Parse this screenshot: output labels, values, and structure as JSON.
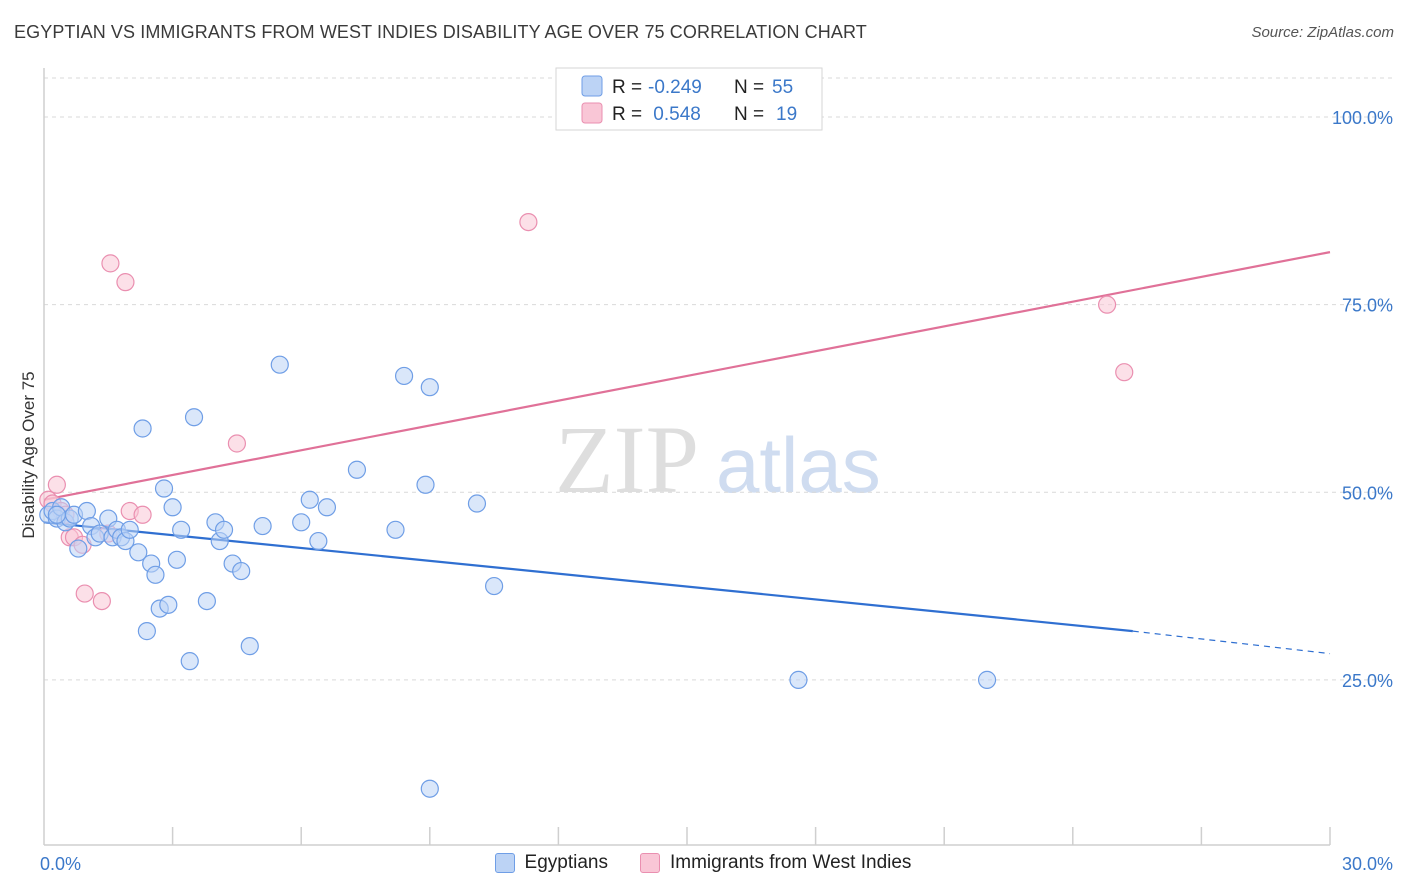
{
  "header": {
    "title": "EGYPTIAN VS IMMIGRANTS FROM WEST INDIES DISABILITY AGE OVER 75 CORRELATION CHART",
    "source": "Source: ZipAtlas.com"
  },
  "watermark": {
    "zip": "ZIP",
    "atlas": "atlas"
  },
  "colors": {
    "blue": "#3b78c9",
    "blue_fill": "#bcd3f5",
    "blue_line": "#2f6fd1",
    "pink_fill": "#f9c6d6",
    "pink_line": "#e07198",
    "grid": "#d9d9d9"
  },
  "legend": {
    "rows": [
      {
        "r_label": "R =",
        "r_value": "-0.249",
        "n_label": "N =",
        "n_value": "55"
      },
      {
        "r_label": "R =",
        "r_value": " 0.548",
        "n_label": "N =",
        "n_value": "19"
      }
    ]
  },
  "chart_data": {
    "type": "scatter",
    "title": "EGYPTIAN VS IMMIGRANTS FROM WEST INDIES DISABILITY AGE OVER 75 CORRELATION CHART",
    "xlabel": "",
    "ylabel": "Disability Age Over 75",
    "xlim": [
      0,
      30
    ],
    "ylim": [
      3,
      106
    ],
    "x_tick_labels": [
      "0.0%",
      "30.0%"
    ],
    "y_ticks": [
      25,
      50,
      75,
      100
    ],
    "y_tick_labels": [
      "25.0%",
      "50.0%",
      "75.0%",
      "100.0%"
    ],
    "series": [
      {
        "name": "Egyptians",
        "r": -0.249,
        "n": 55,
        "points": [
          [
            0.1,
            47.0
          ],
          [
            0.2,
            47.5
          ],
          [
            0.3,
            46.5
          ],
          [
            0.4,
            48.0
          ],
          [
            0.5,
            46.0
          ],
          [
            0.6,
            46.5
          ],
          [
            0.7,
            47.0
          ],
          [
            0.8,
            42.5
          ],
          [
            1.0,
            47.5
          ],
          [
            1.1,
            45.5
          ],
          [
            1.2,
            44.0
          ],
          [
            1.3,
            44.5
          ],
          [
            1.5,
            46.5
          ],
          [
            1.6,
            44.0
          ],
          [
            1.7,
            45.0
          ],
          [
            1.8,
            44.0
          ],
          [
            1.9,
            43.5
          ],
          [
            2.0,
            45.0
          ],
          [
            2.2,
            42.0
          ],
          [
            2.3,
            58.5
          ],
          [
            2.4,
            31.5
          ],
          [
            2.5,
            40.5
          ],
          [
            2.6,
            39.0
          ],
          [
            2.7,
            34.5
          ],
          [
            2.8,
            50.5
          ],
          [
            2.9,
            35.0
          ],
          [
            3.0,
            48.0
          ],
          [
            3.1,
            41.0
          ],
          [
            3.2,
            45.0
          ],
          [
            3.4,
            27.5
          ],
          [
            3.5,
            60.0
          ],
          [
            3.8,
            35.5
          ],
          [
            4.0,
            46.0
          ],
          [
            4.1,
            43.5
          ],
          [
            4.2,
            45.0
          ],
          [
            4.4,
            40.5
          ],
          [
            4.6,
            39.5
          ],
          [
            4.8,
            29.5
          ],
          [
            5.1,
            45.5
          ],
          [
            5.5,
            67.0
          ],
          [
            6.0,
            46.0
          ],
          [
            6.2,
            49.0
          ],
          [
            6.4,
            43.5
          ],
          [
            6.6,
            48.0
          ],
          [
            7.3,
            53.0
          ],
          [
            8.2,
            45.0
          ],
          [
            8.4,
            65.5
          ],
          [
            8.9,
            51.0
          ],
          [
            9.0,
            64.0
          ],
          [
            9.0,
            10.5
          ],
          [
            10.1,
            48.5
          ],
          [
            10.5,
            37.5
          ],
          [
            17.6,
            25.0
          ],
          [
            22.0,
            25.0
          ],
          [
            0.3,
            47.0
          ]
        ]
      },
      {
        "name": "Immigrants from West Indies",
        "r": 0.548,
        "n": 19,
        "points": [
          [
            0.1,
            49.0
          ],
          [
            0.2,
            48.5
          ],
          [
            0.3,
            51.0
          ],
          [
            0.4,
            47.5
          ],
          [
            0.5,
            47.0
          ],
          [
            0.6,
            44.0
          ],
          [
            0.7,
            44.0
          ],
          [
            0.9,
            43.0
          ],
          [
            0.95,
            36.5
          ],
          [
            1.35,
            35.5
          ],
          [
            1.5,
            44.5
          ],
          [
            1.55,
            80.5
          ],
          [
            1.9,
            78.0
          ],
          [
            2.0,
            47.5
          ],
          [
            2.3,
            47.0
          ],
          [
            4.5,
            56.5
          ],
          [
            11.3,
            86.0
          ],
          [
            24.8,
            75.0
          ],
          [
            25.2,
            66.0
          ]
        ]
      }
    ],
    "trendlines": [
      {
        "series": "Egyptians",
        "x": [
          0,
          25.4
        ],
        "y": [
          46.0,
          31.5
        ],
        "dashed_to": [
          30,
          28.5
        ]
      },
      {
        "series": "Immigrants from West Indies",
        "x": [
          0,
          30
        ],
        "y": [
          49.0,
          82.0
        ]
      }
    ]
  },
  "bottom_legend": {
    "items": [
      {
        "label": "Egyptians"
      },
      {
        "label": "Immigrants from West Indies"
      }
    ]
  }
}
